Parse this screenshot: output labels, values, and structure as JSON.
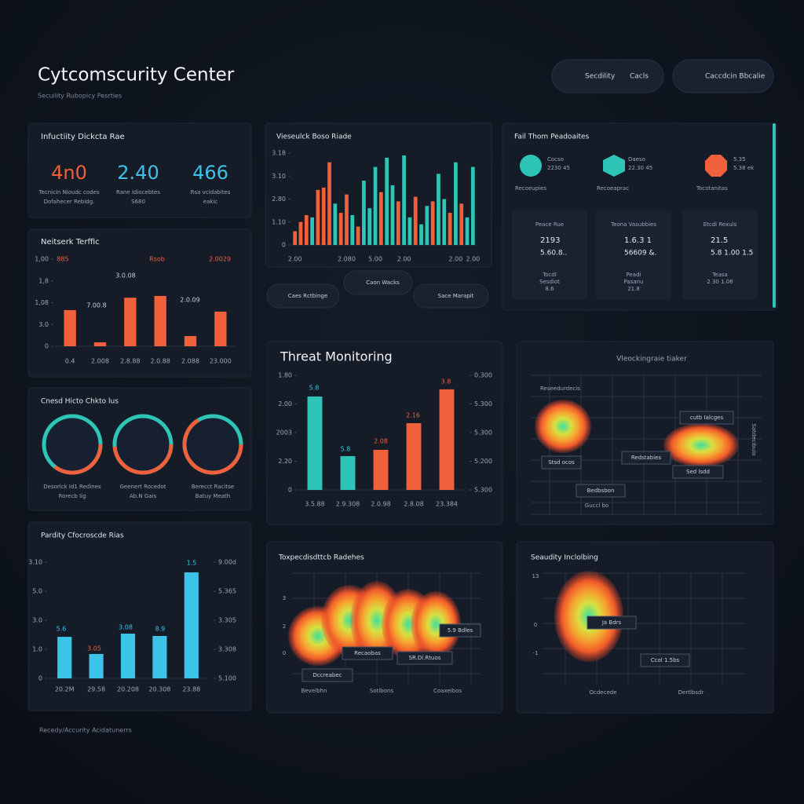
{
  "header": {
    "title": "Cytcomscurity Center",
    "subtitle": "Secuility Rubopicy Pesrties"
  },
  "buttons": [
    {
      "label": "Secdility",
      "extra": "Cacls"
    },
    {
      "label": "Caccdcin Bbcalie"
    }
  ],
  "kpi_panel": {
    "title": "Infuctiity Dickcta Rae",
    "items": [
      {
        "value": "4n0",
        "caption": [
          "Tecnicin Nioudc codes",
          "Dofahecer Rebidg."
        ]
      },
      {
        "value": "2.40",
        "caption": [
          "Rane Idiocebtes",
          "S680"
        ]
      },
      {
        "value": "466",
        "caption": [
          "Rsa vcidabites",
          "eakic"
        ]
      }
    ]
  },
  "network_traffic": {
    "type": "bar",
    "title": "Neitserk Terffic",
    "categories": [
      "0.4",
      "2.008",
      "2.8.88",
      "2.0.88",
      "2.088",
      "23.000"
    ],
    "values": [
      1.66,
      0.18,
      2.23,
      2.31,
      0.47,
      1.59
    ],
    "color": "#f0603a",
    "ylim": [
      0,
      4
    ],
    "yticks": [
      0,
      {
        "value": 1,
        "label": "3.0"
      },
      {
        "value": 2,
        "label": "1,08"
      },
      {
        "value": 3,
        "label": "1,8"
      },
      {
        "value": 4,
        "label": "1,00"
      }
    ],
    "annotations": [
      "885",
      "Rsob",
      "2.0029",
      "3.0.08",
      "7.00.8",
      "2.0.09"
    ]
  },
  "volume": {
    "type": "bar",
    "title": "Vieseulck Boso Riade",
    "categories": [
      "2.00",
      null,
      null,
      null,
      null,
      null,
      null,
      null,
      null,
      "2.080",
      null,
      null,
      null,
      null,
      "5.00",
      null,
      null,
      null,
      null,
      "2.00",
      null,
      null,
      null,
      null,
      null,
      null,
      null,
      null,
      "2.00",
      null,
      null,
      "2.00"
    ],
    "values": [
      0.6,
      1.0,
      1.3,
      1.2,
      2.4,
      2.5,
      3.6,
      1.8,
      1.4,
      2.2,
      1.3,
      0.8,
      2.8,
      1.6,
      3.4,
      2.3,
      3.8,
      2.6,
      1.9,
      3.9,
      1.2,
      2.1,
      0.9,
      1.7,
      1.9,
      3.1,
      2.0,
      1.4,
      3.6,
      1.8,
      1.2,
      3.4
    ],
    "colors": [
      "#f0603a",
      "#f0603a",
      "#f0603a",
      "#2ec4b6",
      "#f0603a",
      "#f0603a",
      "#f0603a",
      "#2ec4b6",
      "#f0603a",
      "#f0603a",
      "#2ec4b6",
      "#f0603a",
      "#2ec4b6",
      "#2ec4b6",
      "#2ec4b6",
      "#f0603a",
      "#2ec4b6",
      "#2ec4b6",
      "#f0603a",
      "#2ec4b6",
      "#2ec4b6",
      "#f0603a",
      "#2ec4b6",
      "#2ec4b6",
      "#f0603a",
      "#2ec4b6",
      "#2ec4b6",
      "#f0603a",
      "#2ec4b6",
      "#f0603a",
      "#2ec4b6",
      "#2ec4b6"
    ],
    "ylim": [
      0,
      4
    ],
    "yticks": [
      0,
      {
        "value": 1,
        "label": "1.10"
      },
      {
        "value": 2,
        "label": "2.80"
      },
      {
        "value": 3,
        "label": "3.10"
      },
      {
        "value": 4,
        "label": "3.18"
      }
    ]
  },
  "pills": [
    "Caes Rctbinge",
    "Caon Wacks",
    "Sace Marapit"
  ],
  "status_panel": {
    "title": "Fail Thom Peadoaites",
    "icons": [
      {
        "line1": "Cocso",
        "line2": "2230 45",
        "caption": "Recoeupies"
      },
      {
        "line1": "Daeso",
        "line2": "22.30 45",
        "caption": "Recoeaprac"
      },
      {
        "line1": "5.35",
        "line2": "5.38 ek",
        "caption": "Tocotanitas"
      }
    ],
    "cards": [
      {
        "title": "Peace Rue",
        "v1": "2193",
        "v2": "5.60.8..",
        "notes": [
          "Tocdl",
          "Sesdiot",
          "8.6"
        ]
      },
      {
        "title": "Teona Vasubbies",
        "v1": "1.6.3 1",
        "v2": "56609 &.",
        "notes": [
          "Peadi",
          "Pasanu",
          "21.8"
        ]
      },
      {
        "title": "Etcdi Rexuls",
        "v1": "21.5",
        "v2": "5.8 1.00 1.5",
        "notes": [
          "Teasa",
          "2.30 1.06"
        ]
      }
    ]
  },
  "threat_monitoring": {
    "type": "bar",
    "title": "Threat Monitoring",
    "categories": [
      "3.5.88",
      "2.9.308",
      "2.0.98",
      "2.8.08",
      "23.384"
    ],
    "values": [
      3.26,
      1.18,
      1.4,
      2.33,
      3.51
    ],
    "colors": [
      "#2ec4b6",
      "#2ec4b6",
      "#f0603a",
      "#f0603a",
      "#f0603a"
    ],
    "ylim": [
      0,
      4
    ],
    "yticks": [
      0,
      {
        "value": 1,
        "label": "2.20"
      },
      {
        "value": 2,
        "label": "2003"
      },
      {
        "value": 3,
        "label": "2.00"
      },
      {
        "value": 4,
        "label": "1.80"
      }
    ],
    "y2lim": [
      0,
      4
    ],
    "y2ticks": [
      {
        "value": 0,
        "label": "5.300"
      },
      {
        "value": 1,
        "label": "5.200"
      },
      {
        "value": 2,
        "label": "5.300"
      },
      {
        "value": 3,
        "label": "5.300"
      },
      {
        "value": 4,
        "label": "0.300"
      }
    ],
    "annotations": [
      "5.8",
      "5.8",
      "2.08",
      "2.16",
      "3.8"
    ]
  },
  "geo_panel": {
    "title": "Cnesd Hicto Chkto lus",
    "captions": [
      [
        "Desorlck Id1 Redines",
        "Rorecb Iig"
      ],
      [
        "Geenert Rocedot",
        "Ab.N Gais"
      ],
      [
        "Berecct Racitse",
        "Batuy Meath"
      ]
    ]
  },
  "priority": {
    "type": "bar",
    "title": "Pardity Cfocroscde Rias",
    "categories": [
      "20.2M",
      "29.58",
      "20.208",
      "20.308",
      "23.88"
    ],
    "values": [
      1.43,
      0.84,
      1.54,
      1.46,
      3.65
    ],
    "color": "#3cc4e8",
    "ylim": [
      0,
      4
    ],
    "yticks": [
      0,
      {
        "value": 1,
        "label": "1.0"
      },
      {
        "value": 2,
        "label": "3.0"
      },
      {
        "value": 3,
        "label": "5.0"
      },
      {
        "value": 4,
        "label": "3.10"
      }
    ],
    "y2lim": [
      0,
      4
    ],
    "y2ticks": [
      {
        "value": 0,
        "label": "5.100"
      },
      {
        "value": 1,
        "label": "3.308"
      },
      {
        "value": 2,
        "label": "3.305"
      },
      {
        "value": 3,
        "label": "5.365"
      },
      {
        "value": 4,
        "label": "9.00d"
      }
    ],
    "annotations": [
      "5.6",
      "3.05",
      "3.08",
      "8.9",
      "1.5"
    ]
  },
  "heat_tracker": {
    "title": "Vleockingraie tiaker",
    "labels": [
      "Reseedurdecis",
      "cutb Ialcges",
      "Stsd ocos",
      "Redstabies",
      "Sed lsdd",
      "Bedbsbon",
      "Guccl bo",
      "Satdecibuio"
    ]
  },
  "heat_waves": {
    "title": "Toxpecdisdttcb Radehes",
    "labels": [
      "5.9 Bdles",
      "Recaobas",
      "SR.Dl.Rtuos",
      "Dccreabec",
      "Bevelbhn",
      "Sotlbons",
      "Coaxeibos"
    ],
    "ticks": [
      "3",
      "2",
      "0"
    ]
  },
  "heat_incidents": {
    "title": "Seaudity Inclolbing",
    "labels": [
      "Ja Bdrs",
      "Ccol 1.5bs",
      "Ocdecede",
      "Dertlbsdr"
    ],
    "ticks": [
      "13",
      "0",
      "-1"
    ]
  },
  "footer": "Recedy/Accurity Acidatunerrs"
}
